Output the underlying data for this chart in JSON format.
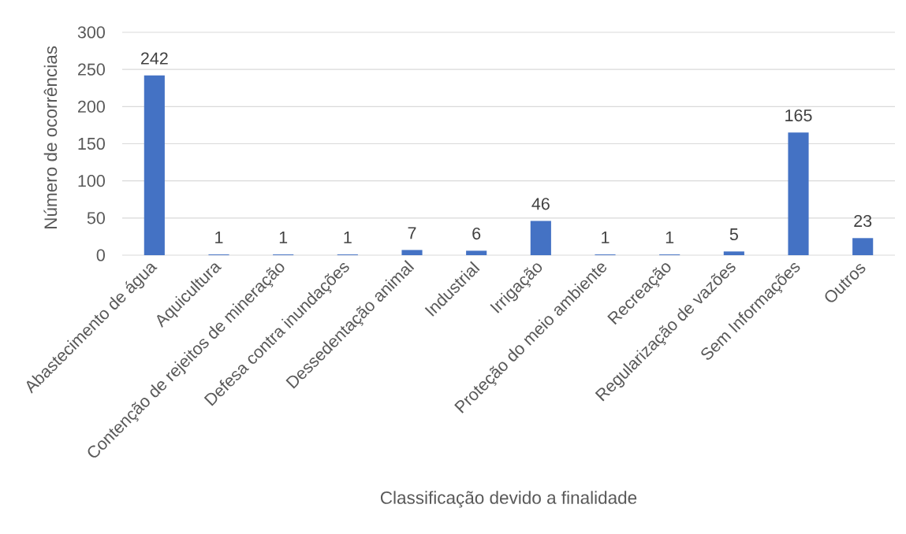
{
  "chart_data": {
    "type": "bar",
    "xlabel": "Classificação devido a finalidade",
    "ylabel": "Número de ocorrências",
    "categories": [
      "Abastecimento de água",
      "Aquicultura",
      "Contenção de rejeitos de mineração",
      "Defesa contra inundações",
      "Dessedentação animal",
      "Industrial",
      "Irrigação",
      "Proteção do meio ambiente",
      "Recreação",
      "Regularização de vazões",
      "Sem Informações",
      "Outros"
    ],
    "values": [
      242,
      1,
      1,
      1,
      7,
      6,
      46,
      1,
      1,
      5,
      165,
      23
    ],
    "color": "#4472c4",
    "ylim": [
      0,
      300
    ],
    "yticks": [
      0,
      50,
      100,
      150,
      200,
      250,
      300
    ],
    "grid": "y",
    "data_labels": true
  }
}
